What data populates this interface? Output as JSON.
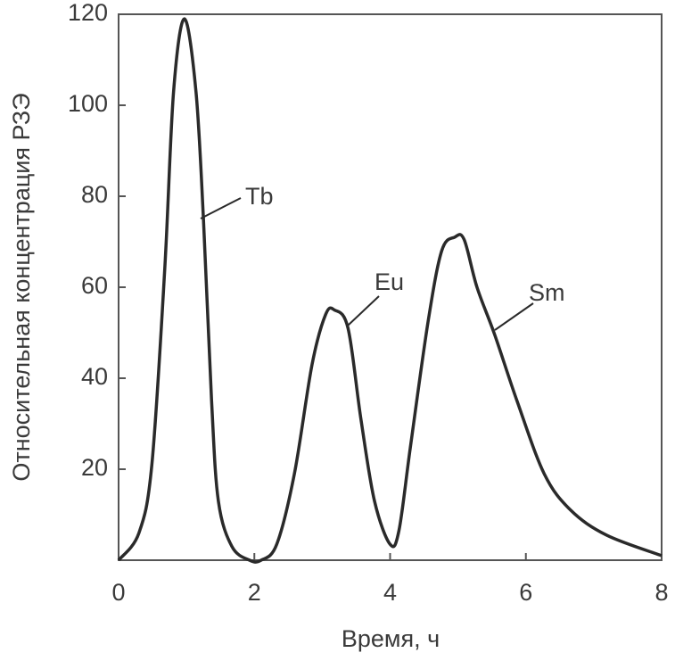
{
  "chart_data": {
    "type": "line",
    "x_label": "Время, ч",
    "y_label": "Относительная концентрация РЗЭ",
    "x": [
      0,
      0.3,
      0.49,
      0.68,
      0.81,
      0.97,
      1.14,
      1.25,
      1.37,
      1.47,
      1.67,
      1.93,
      2.1,
      2.33,
      2.59,
      2.85,
      3.05,
      3.18,
      3.38,
      3.57,
      3.77,
      4.0,
      4.13,
      4.3,
      4.56,
      4.76,
      4.95,
      5.09,
      5.28,
      5.54,
      5.87,
      6.27,
      6.66,
      7.19,
      8.0
    ],
    "series": [
      {
        "color": "#2a2a2a",
        "values": [
          0,
          6,
          21,
          64,
          103,
          119,
          103,
          75,
          35,
          13,
          3,
          0,
          0,
          3.5,
          19,
          43,
          54,
          55,
          51,
          31,
          13,
          3.5,
          6.5,
          25,
          52.5,
          68,
          71,
          70.5,
          60,
          49.6,
          35,
          19,
          11,
          5.5,
          1
        ]
      }
    ],
    "annotations": [
      "Tb",
      "Eu",
      "Sm"
    ],
    "xlim": [
      0,
      8
    ],
    "xticks": [
      0,
      2,
      4,
      6,
      8
    ],
    "ylim": [
      0,
      120
    ],
    "yticks": [
      20,
      40,
      60,
      80,
      100,
      120
    ]
  }
}
